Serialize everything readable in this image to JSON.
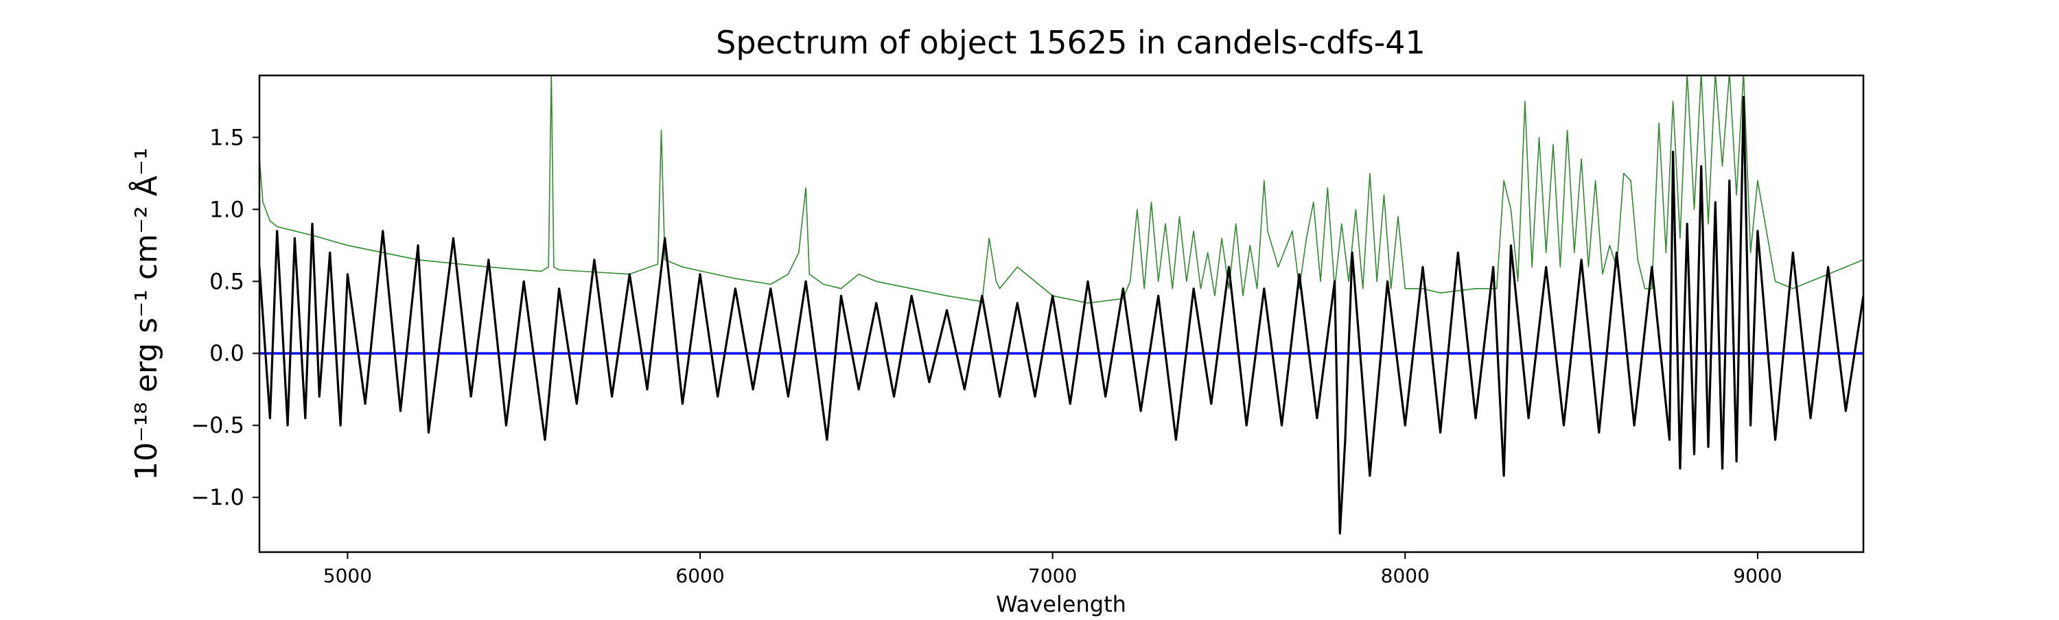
{
  "chart_data": {
    "type": "line",
    "title": "Spectrum of object 15625 in candels-cdfs-41",
    "xlabel": "Wavelength",
    "ylabel": "10⁻¹⁸ erg s⁻¹ cm⁻² Å⁻¹",
    "xlim": [
      4750,
      9300
    ],
    "ylim": [
      -1.38,
      1.93
    ],
    "x_ticks": [
      5000,
      6000,
      7000,
      8000,
      9000
    ],
    "x_tick_labels": [
      "5000",
      "6000",
      "7000",
      "8000",
      "9000"
    ],
    "y_ticks": [
      -1.0,
      -0.5,
      0.0,
      0.5,
      1.0,
      1.5
    ],
    "y_tick_labels": [
      "−1.0",
      "−0.5",
      "0.0",
      "0.5",
      "1.0",
      "1.5"
    ],
    "grid": false,
    "series": [
      {
        "role": "flux",
        "color": "#000000",
        "x": [
          4750,
          4780,
          4800,
          4830,
          4850,
          4880,
          4900,
          4920,
          4950,
          4980,
          5000,
          5050,
          5100,
          5150,
          5200,
          5230,
          5300,
          5350,
          5400,
          5450,
          5500,
          5560,
          5600,
          5650,
          5700,
          5750,
          5800,
          5850,
          5900,
          5950,
          6000,
          6050,
          6100,
          6150,
          6200,
          6250,
          6300,
          6360,
          6400,
          6450,
          6500,
          6550,
          6600,
          6650,
          6700,
          6750,
          6800,
          6850,
          6900,
          6950,
          7000,
          7050,
          7100,
          7150,
          7200,
          7250,
          7300,
          7350,
          7400,
          7450,
          7500,
          7550,
          7600,
          7650,
          7700,
          7750,
          7800,
          7815,
          7830,
          7850,
          7900,
          7950,
          8000,
          8050,
          8100,
          8150,
          8200,
          8250,
          8280,
          8300,
          8350,
          8400,
          8450,
          8500,
          8550,
          8600,
          8650,
          8700,
          8750,
          8760,
          8780,
          8800,
          8820,
          8840,
          8860,
          8880,
          8900,
          8920,
          8940,
          8960,
          8980,
          9000,
          9050,
          9100,
          9150,
          9200,
          9250,
          9300
        ],
        "values": [
          0.6,
          -0.45,
          0.85,
          -0.5,
          0.8,
          -0.45,
          0.9,
          -0.3,
          0.7,
          -0.5,
          0.55,
          -0.35,
          0.85,
          -0.4,
          0.75,
          -0.55,
          0.8,
          -0.3,
          0.65,
          -0.5,
          0.5,
          -0.6,
          0.45,
          -0.35,
          0.65,
          -0.3,
          0.55,
          -0.25,
          0.8,
          -0.35,
          0.55,
          -0.3,
          0.45,
          -0.25,
          0.45,
          -0.3,
          0.5,
          -0.6,
          0.4,
          -0.25,
          0.35,
          -0.3,
          0.4,
          -0.2,
          0.3,
          -0.25,
          0.4,
          -0.3,
          0.35,
          -0.3,
          0.4,
          -0.35,
          0.5,
          -0.3,
          0.45,
          -0.4,
          0.4,
          -0.6,
          0.45,
          -0.35,
          0.6,
          -0.5,
          0.45,
          -0.5,
          0.55,
          -0.45,
          0.5,
          -1.25,
          -0.6,
          0.7,
          -0.85,
          0.5,
          -0.5,
          0.6,
          -0.55,
          0.7,
          -0.45,
          0.6,
          -0.85,
          0.75,
          -0.45,
          0.6,
          -0.5,
          0.65,
          -0.55,
          0.7,
          -0.5,
          0.6,
          -0.6,
          1.4,
          -0.8,
          0.9,
          -0.7,
          1.3,
          -0.65,
          1.05,
          -0.8,
          1.2,
          -0.75,
          1.78,
          -0.5,
          0.85,
          -0.6,
          0.7,
          -0.45,
          0.6,
          -0.4,
          0.4
        ]
      },
      {
        "role": "error",
        "color": "#2e8b2e",
        "x": [
          4750,
          4760,
          4780,
          4800,
          4850,
          4900,
          5000,
          5200,
          5400,
          5550,
          5570,
          5578,
          5585,
          5600,
          5800,
          5880,
          5890,
          5900,
          5950,
          6100,
          6200,
          6250,
          6280,
          6300,
          6310,
          6350,
          6400,
          6450,
          6500,
          6600,
          6700,
          6800,
          6820,
          6840,
          6850,
          6900,
          7000,
          7100,
          7200,
          7220,
          7240,
          7260,
          7280,
          7300,
          7320,
          7340,
          7360,
          7380,
          7400,
          7420,
          7440,
          7460,
          7480,
          7500,
          7520,
          7540,
          7560,
          7580,
          7600,
          7610,
          7640,
          7680,
          7700,
          7720,
          7740,
          7760,
          7780,
          7800,
          7820,
          7840,
          7860,
          7880,
          7900,
          7920,
          7940,
          7960,
          7980,
          8000,
          8050,
          8100,
          8200,
          8260,
          8280,
          8300,
          8320,
          8340,
          8360,
          8380,
          8400,
          8420,
          8440,
          8460,
          8480,
          8500,
          8520,
          8540,
          8560,
          8580,
          8600,
          8620,
          8640,
          8660,
          8680,
          8700,
          8720,
          8740,
          8760,
          8780,
          8800,
          8820,
          8840,
          8860,
          8880,
          8900,
          8920,
          8940,
          8960,
          8980,
          9000,
          9050,
          9100,
          9150,
          9200,
          9250,
          9300
        ],
        "values": [
          1.35,
          1.05,
          0.92,
          0.88,
          0.85,
          0.82,
          0.75,
          0.65,
          0.6,
          0.57,
          0.6,
          1.95,
          0.6,
          0.58,
          0.55,
          0.62,
          1.55,
          0.65,
          0.6,
          0.52,
          0.48,
          0.55,
          0.7,
          1.15,
          0.55,
          0.48,
          0.45,
          0.55,
          0.5,
          0.45,
          0.4,
          0.36,
          0.8,
          0.5,
          0.45,
          0.6,
          0.4,
          0.35,
          0.38,
          0.5,
          1.0,
          0.45,
          1.05,
          0.5,
          0.9,
          0.45,
          0.95,
          0.5,
          0.85,
          0.45,
          0.7,
          0.4,
          0.8,
          0.45,
          0.9,
          0.4,
          0.75,
          0.45,
          1.2,
          0.85,
          0.6,
          0.85,
          0.45,
          0.8,
          1.05,
          0.5,
          1.15,
          0.45,
          0.9,
          0.5,
          1.0,
          0.45,
          1.25,
          0.5,
          1.1,
          0.45,
          0.95,
          0.45,
          0.45,
          0.42,
          0.45,
          0.45,
          1.2,
          1.0,
          0.5,
          1.75,
          0.6,
          1.5,
          0.7,
          1.45,
          0.6,
          1.55,
          0.7,
          1.35,
          0.6,
          1.2,
          0.55,
          0.75,
          0.6,
          1.25,
          1.2,
          0.65,
          0.45,
          0.45,
          1.6,
          0.7,
          1.75,
          0.8,
          1.95,
          1.0,
          1.95,
          0.9,
          1.95,
          1.3,
          1.95,
          1.1,
          1.95,
          0.7,
          1.2,
          0.5,
          0.45,
          0.5,
          0.55,
          0.6,
          0.65
        ]
      },
      {
        "role": "zero-line",
        "color": "#0000ff",
        "x": [
          4750,
          9300
        ],
        "values": [
          0.0,
          0.0
        ]
      }
    ]
  }
}
